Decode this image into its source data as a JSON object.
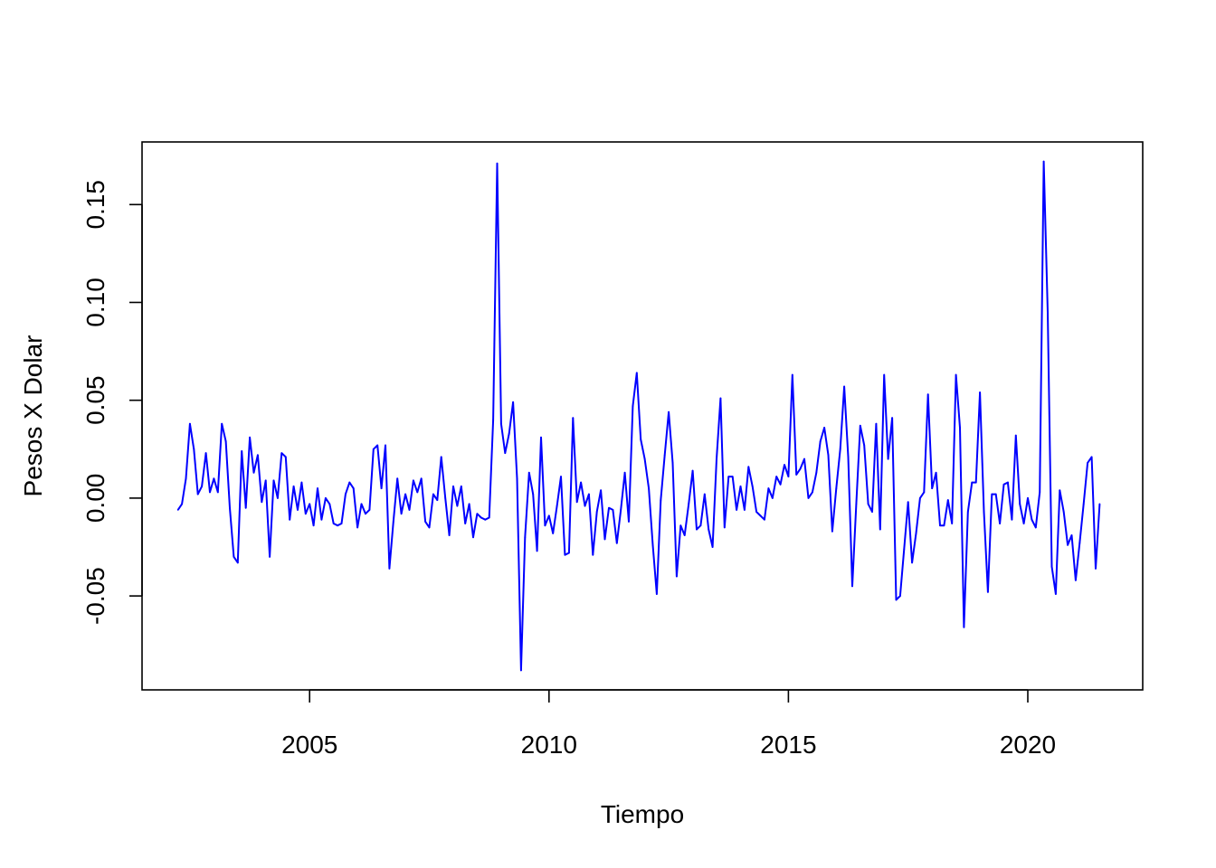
{
  "chart_data": {
    "type": "line",
    "title": "",
    "xlabel": "Tiempo",
    "ylabel": "Pesos X Dolar",
    "xlim": [
      2001.5,
      2022.4
    ],
    "ylim": [
      -0.098,
      0.182
    ],
    "grid": false,
    "line_color": "#0000ff",
    "x_ticks": [
      2005,
      2010,
      2015,
      2020
    ],
    "x_tick_labels": [
      "2005",
      "2010",
      "2015",
      "2020"
    ],
    "y_ticks": [
      -0.05,
      0.0,
      0.05,
      0.1,
      0.15
    ],
    "y_tick_labels": [
      "-0.05",
      "0.00",
      "0.05",
      "0.10",
      "0.15"
    ],
    "x_start": 2002.25,
    "x_step": 0.0833333,
    "series": [
      {
        "values": [
          -0.006,
          -0.003,
          0.01,
          0.038,
          0.025,
          0.002,
          0.006,
          0.023,
          0.003,
          0.01,
          0.003,
          0.038,
          0.029,
          -0.005,
          -0.03,
          -0.033,
          0.024,
          -0.005,
          0.031,
          0.013,
          0.022,
          -0.002,
          0.009,
          -0.03,
          0.009,
          0.0,
          0.023,
          0.021,
          -0.011,
          0.006,
          -0.006,
          0.008,
          -0.008,
          -0.003,
          -0.014,
          0.005,
          -0.011,
          0.0,
          -0.003,
          -0.013,
          -0.014,
          -0.013,
          0.002,
          0.008,
          0.005,
          -0.015,
          -0.003,
          -0.008,
          -0.006,
          0.025,
          0.027,
          0.005,
          0.027,
          -0.036,
          -0.012,
          0.01,
          -0.008,
          0.002,
          -0.006,
          0.009,
          0.003,
          0.01,
          -0.012,
          -0.015,
          0.002,
          -0.001,
          0.021,
          0.0,
          -0.019,
          0.006,
          -0.004,
          0.006,
          -0.013,
          -0.003,
          -0.02,
          -0.008,
          -0.01,
          -0.011,
          -0.01,
          0.04,
          0.171,
          0.038,
          0.023,
          0.033,
          0.049,
          0.01,
          -0.088,
          -0.02,
          0.013,
          0.002,
          -0.027,
          0.031,
          -0.014,
          -0.009,
          -0.018,
          -0.004,
          0.011,
          -0.029,
          -0.028,
          0.041,
          -0.002,
          0.008,
          -0.004,
          0.002,
          -0.029,
          -0.007,
          0.004,
          -0.021,
          -0.005,
          -0.006,
          -0.023,
          -0.006,
          0.013,
          -0.012,
          0.047,
          0.064,
          0.03,
          0.02,
          0.005,
          -0.024,
          -0.049,
          -0.001,
          0.022,
          0.044,
          0.018,
          -0.04,
          -0.014,
          -0.019,
          -0.003,
          0.014,
          -0.016,
          -0.014,
          0.002,
          -0.016,
          -0.025,
          0.02,
          0.051,
          -0.015,
          0.011,
          0.011,
          -0.006,
          0.006,
          -0.006,
          0.016,
          0.006,
          -0.007,
          -0.009,
          -0.011,
          0.005,
          0.0,
          0.011,
          0.007,
          0.017,
          0.011,
          0.063,
          0.012,
          0.015,
          0.02,
          0.0,
          0.003,
          0.013,
          0.029,
          0.036,
          0.022,
          -0.017,
          0.005,
          0.025,
          0.057,
          0.021,
          -0.045,
          -0.003,
          0.037,
          0.027,
          -0.003,
          -0.007,
          0.038,
          -0.016,
          0.063,
          0.02,
          0.041,
          -0.052,
          -0.05,
          -0.026,
          -0.002,
          -0.033,
          -0.018,
          0.0,
          0.003,
          0.053,
          0.005,
          0.013,
          -0.014,
          -0.014,
          -0.001,
          -0.013,
          0.063,
          0.036,
          -0.066,
          -0.007,
          0.008,
          0.008,
          0.054,
          -0.007,
          -0.048,
          0.002,
          0.002,
          -0.013,
          0.007,
          0.008,
          -0.011,
          0.032,
          -0.003,
          -0.013,
          0.0,
          -0.011,
          -0.015,
          0.003,
          0.172,
          0.095,
          -0.035,
          -0.049,
          0.004,
          -0.007,
          -0.024,
          -0.019,
          -0.042,
          -0.023,
          -0.003,
          0.018,
          0.021,
          -0.036,
          -0.003
        ]
      }
    ]
  }
}
